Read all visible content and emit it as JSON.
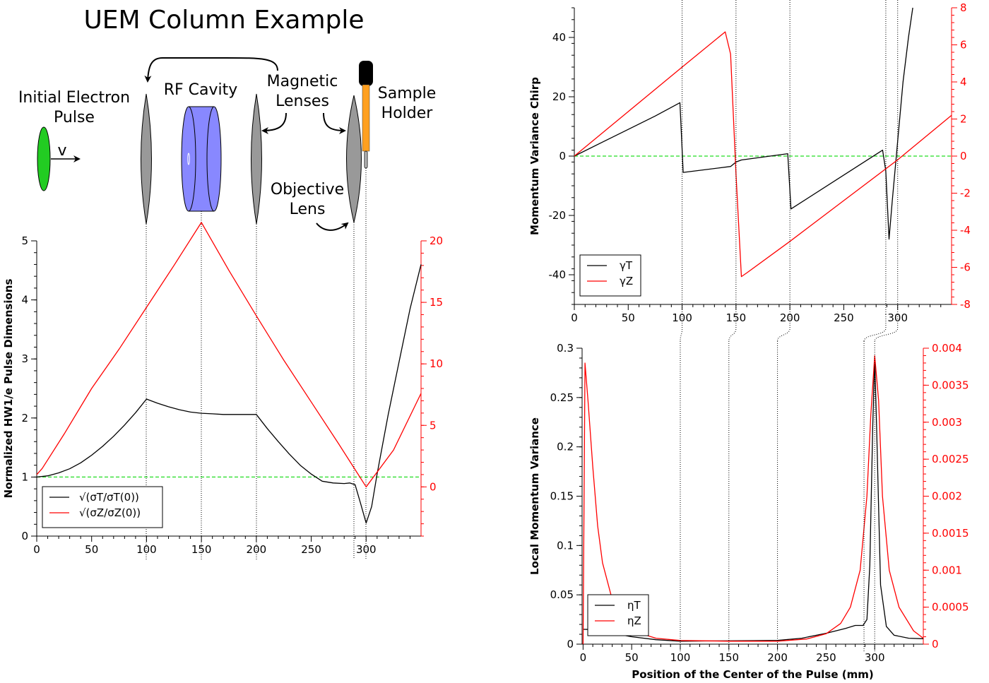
{
  "title": "UEM Column Example",
  "diagram": {
    "labels": {
      "initial_pulse_line1": "Initial Electron",
      "initial_pulse_line2": "Pulse",
      "velocity": "v",
      "rf_cavity": "RF Cavity",
      "magnetic_line1": "Magnetic",
      "magnetic_line2": "Lenses",
      "sample_line1": "Sample",
      "sample_line2": "Holder",
      "objective_line1": "Objective",
      "objective_line2": "Lens"
    },
    "colors": {
      "pulse": "#22cc22",
      "cavity": "#8888ff",
      "lens": "#999999",
      "holder_cap": "#000000",
      "holder_rod": "#ffa020"
    }
  },
  "chart_data": [
    {
      "type": "line",
      "ylabel": "Normalized HW1/e Pulse Dimensions",
      "xlabel": "",
      "xlim": [
        0,
        350
      ],
      "ylim": [
        0,
        5
      ],
      "y2lim": [
        -4,
        20
      ],
      "x_ticks": [
        0,
        50,
        100,
        150,
        200,
        250,
        300
      ],
      "y_ticks": [
        0,
        1,
        2,
        3,
        4,
        5
      ],
      "y2_ticks": [
        0,
        5,
        10,
        15,
        20
      ],
      "legend_position": "bottom-left",
      "reference_line": {
        "y": 1,
        "color": "#22dd22"
      },
      "series": [
        {
          "name": "√(σT/σT(0))",
          "axis": "left",
          "color": "#000000",
          "x": [
            0,
            10,
            20,
            30,
            40,
            50,
            60,
            70,
            80,
            90,
            100,
            110,
            120,
            130,
            140,
            150,
            160,
            170,
            180,
            190,
            200,
            210,
            220,
            230,
            240,
            250,
            260,
            270,
            280,
            285,
            290,
            295,
            300,
            305,
            310,
            320,
            330,
            340,
            350
          ],
          "y": [
            1.0,
            1.02,
            1.07,
            1.14,
            1.24,
            1.37,
            1.52,
            1.69,
            1.88,
            2.09,
            2.32,
            2.25,
            2.19,
            2.14,
            2.1,
            2.08,
            2.07,
            2.06,
            2.06,
            2.06,
            2.06,
            1.82,
            1.6,
            1.39,
            1.2,
            1.05,
            0.93,
            0.9,
            0.89,
            0.9,
            0.87,
            0.55,
            0.22,
            0.5,
            1.05,
            2.05,
            2.95,
            3.85,
            4.6
          ]
        },
        {
          "name": "√(σZ/σZ(0))",
          "axis": "right",
          "color": "#ff0000",
          "x": [
            0,
            5,
            25,
            50,
            75,
            100,
            125,
            150,
            175,
            200,
            225,
            250,
            275,
            300,
            325,
            350
          ],
          "y": [
            1.0,
            1.5,
            4.3,
            8.0,
            11.2,
            14.6,
            18.0,
            21.5,
            17.6,
            13.9,
            10.3,
            6.9,
            3.5,
            0.0,
            3.0,
            7.6
          ]
        }
      ]
    },
    {
      "type": "line",
      "ylabel": "Momentum Variance Chirp",
      "xlabel": "",
      "xlim": [
        0,
        350
      ],
      "ylim": [
        -50,
        50
      ],
      "y2lim": [
        -8,
        8
      ],
      "x_ticks": [
        0,
        50,
        100,
        150,
        200,
        250,
        300
      ],
      "y_ticks": [
        -40,
        -20,
        0,
        20,
        40
      ],
      "y2_ticks": [
        -8,
        -6,
        -4,
        -2,
        0,
        2,
        4,
        6,
        8
      ],
      "legend_position": "bottom-left",
      "reference_line": {
        "y": 0,
        "color": "#22dd22"
      },
      "series": [
        {
          "name": "γT",
          "axis": "left",
          "color": "#000000",
          "x": [
            0,
            25,
            50,
            75,
            98,
            101,
            145,
            150,
            155,
            198,
            201,
            286,
            289,
            292,
            295,
            300,
            305,
            310,
            314
          ],
          "y": [
            0,
            4.5,
            9,
            13.5,
            18,
            -5.5,
            -3.5,
            -2.0,
            -1.3,
            0.8,
            -17.8,
            2.0,
            -5.0,
            -28.0,
            -15.0,
            5.0,
            25.0,
            40.0,
            50.0
          ]
        },
        {
          "name": "γZ",
          "axis": "right",
          "color": "#ff0000",
          "x": [
            0,
            50,
            100,
            140,
            145,
            150,
            155,
            160,
            200,
            250,
            300,
            350
          ],
          "y": [
            0,
            2.4,
            4.8,
            6.7,
            5.5,
            -1.0,
            -6.5,
            -6.3,
            -4.6,
            -2.4,
            -0.2,
            2.2
          ]
        }
      ]
    },
    {
      "type": "line",
      "ylabel": "Local Momentum Variance",
      "xlabel": "Position of the Center of the Pulse (mm)",
      "xlim": [
        0,
        350
      ],
      "ylim": [
        0,
        0.3
      ],
      "y2lim": [
        0,
        0.004
      ],
      "x_ticks": [
        0,
        50,
        100,
        150,
        200,
        250,
        300
      ],
      "y_ticks": [
        0,
        0.05,
        0.1,
        0.15,
        0.2,
        0.25,
        0.3
      ],
      "y2_ticks": [
        0,
        0.0005,
        0.001,
        0.0015,
        0.002,
        0.0025,
        0.003,
        0.0035,
        0.004
      ],
      "y_tick_labels": [
        "0",
        "0.05",
        "0.1",
        "0.15",
        "0.2",
        "0.25",
        "0.3"
      ],
      "y2_tick_labels": [
        "0",
        "0.0005",
        "0.001",
        "0.0015",
        "0.002",
        "0.0025",
        "0.003",
        "0.0035",
        "0.004"
      ],
      "legend_position": "bottom-left",
      "series": [
        {
          "name": "ηT",
          "axis": "left",
          "color": "#000000",
          "x": [
            0,
            10,
            25,
            50,
            75,
            100,
            125,
            150,
            175,
            200,
            225,
            250,
            270,
            280,
            288,
            292,
            295,
            298,
            300,
            302,
            306,
            312,
            320,
            335,
            350
          ],
          "y": [
            0.015,
            0.0148,
            0.012,
            0.0075,
            0.0045,
            0.003,
            0.0032,
            0.0034,
            0.0036,
            0.0038,
            0.006,
            0.011,
            0.016,
            0.019,
            0.019,
            0.025,
            0.08,
            0.22,
            0.29,
            0.22,
            0.06,
            0.018,
            0.009,
            0.006,
            0.0055
          ]
        },
        {
          "name": "ηZ",
          "axis": "right",
          "color": "#ff0000",
          "x": [
            0,
            2,
            5,
            10,
            15,
            20,
            30,
            40,
            50,
            75,
            100,
            150,
            200,
            230,
            250,
            265,
            275,
            285,
            292,
            296,
            300,
            304,
            308,
            315,
            325,
            340,
            350
          ],
          "y": [
            0.0,
            0.0038,
            0.0033,
            0.0024,
            0.0016,
            0.0011,
            0.0006,
            0.0003,
            0.00018,
            8e-05,
            5e-05,
            4e-05,
            4e-05,
            7e-05,
            0.00014,
            0.00028,
            0.0005,
            0.001,
            0.002,
            0.0031,
            0.0039,
            0.0033,
            0.002,
            0.001,
            0.0005,
            0.00018,
            8e-05
          ]
        }
      ]
    }
  ]
}
